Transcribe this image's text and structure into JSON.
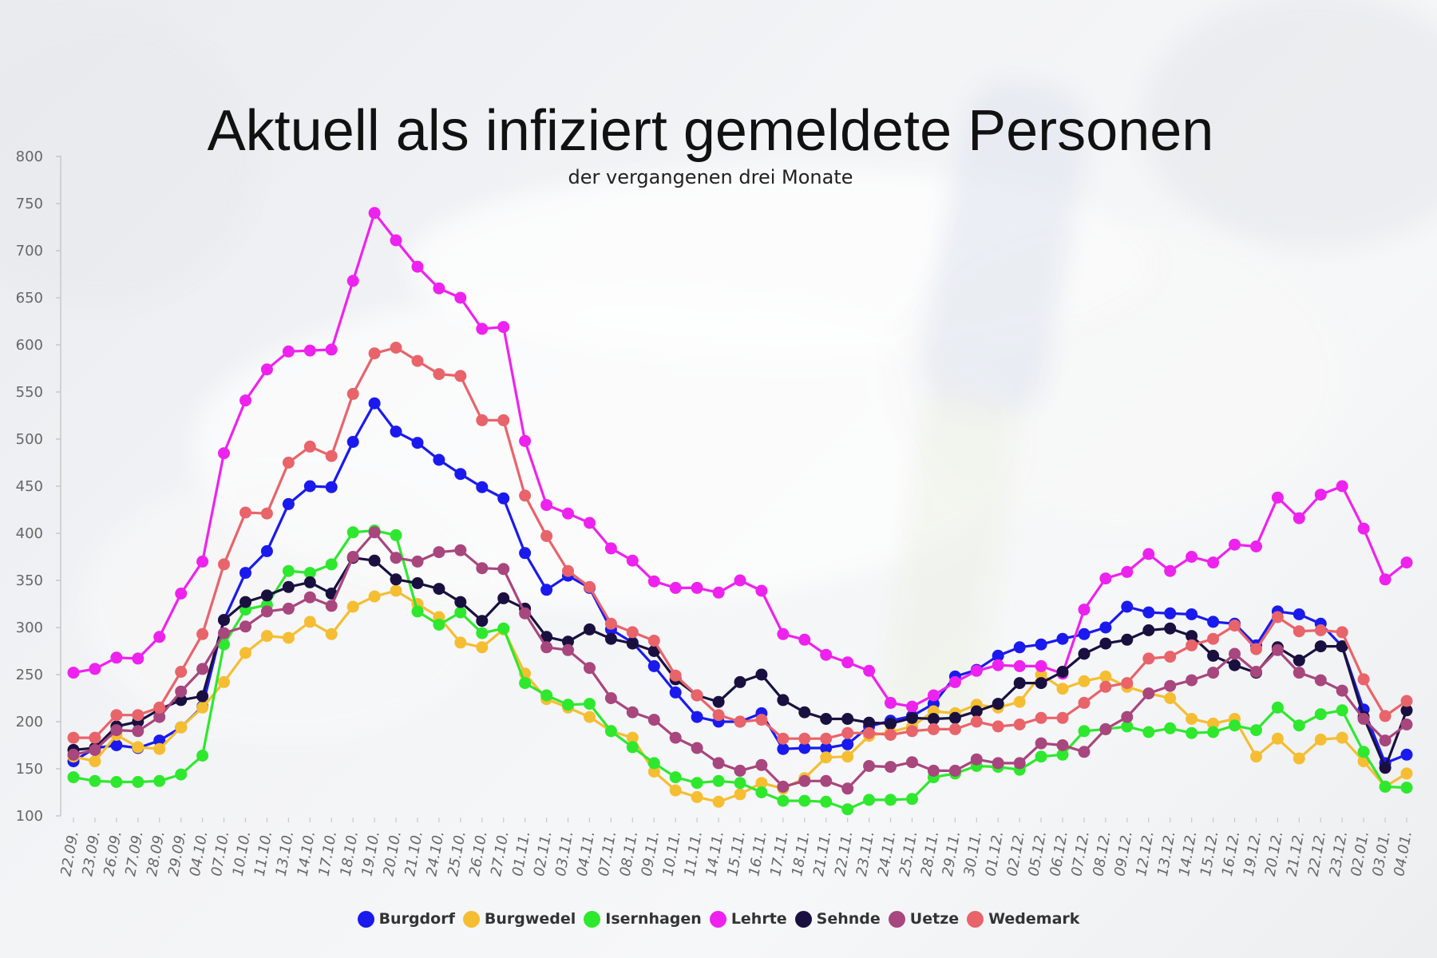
{
  "chart_data": {
    "type": "line",
    "title": "Aktuell als infiziert gemeldete Personen",
    "subtitle": "der vergangenen drei Monate",
    "xlabel": "",
    "ylabel": "",
    "ylim": [
      100,
      800
    ],
    "yticks": [
      "800",
      "750",
      "700",
      "650",
      "600",
      "550",
      "500",
      "450",
      "400",
      "350",
      "300",
      "250",
      "200",
      "150",
      "100"
    ],
    "grid": false,
    "legend_position": "bottom",
    "x": [
      "22.09.",
      "23.09.",
      "26.09.",
      "27.09.",
      "28.09.",
      "29.09.",
      "04.10.",
      "07.10.",
      "10.10.",
      "11.10.",
      "13.10.",
      "14.10.",
      "17.10.",
      "18.10.",
      "19.10.",
      "20.10.",
      "21.10.",
      "24.10.",
      "25.10.",
      "26.10.",
      "27.10.",
      "01.11.",
      "02.11.",
      "03.11.",
      "04.11.",
      "07.11.",
      "08.11.",
      "09.11.",
      "10.11.",
      "11.11.",
      "14.11.",
      "15.11.",
      "16.11.",
      "17.11.",
      "18.11.",
      "21.11.",
      "22.11.",
      "23.11.",
      "24.11.",
      "25.11.",
      "28.11.",
      "29.11.",
      "30.11.",
      "01.12.",
      "02.12.",
      "05.12.",
      "06.12.",
      "07.12.",
      "08.12.",
      "09.12.",
      "12.12.",
      "13.12.",
      "14.12.",
      "15.12.",
      "16.12.",
      "19.12.",
      "20.12.",
      "21.12.",
      "22.12.",
      "23.12.",
      "02.01.",
      "03.01.",
      "04.01."
    ],
    "series": [
      {
        "name": "Burgdorf",
        "color": "#1a1aee",
        "values": [
          158,
          172,
          175,
          172,
          180,
          194,
          216,
          308,
          358,
          381,
          431,
          450,
          449,
          497,
          538,
          508,
          496,
          478,
          463,
          449,
          437,
          379,
          340,
          355,
          342,
          298,
          284,
          259,
          231,
          205,
          200,
          200,
          209,
          171,
          172,
          172,
          176,
          195,
          201,
          206,
          219,
          248,
          255,
          270,
          279,
          282,
          288,
          293,
          300,
          322,
          316,
          315,
          314,
          306,
          304,
          281,
          317,
          314,
          304,
          280,
          213,
          156,
          165
        ]
      },
      {
        "name": "Burgwedel",
        "color": "#f5be32",
        "values": [
          163,
          158,
          186,
          173,
          171,
          194,
          215,
          242,
          273,
          291,
          289,
          306,
          293,
          322,
          333,
          339,
          325,
          311,
          284,
          279,
          298,
          251,
          224,
          215,
          205,
          190,
          183,
          147,
          127,
          120,
          115,
          123,
          135,
          129,
          140,
          162,
          163,
          185,
          189,
          195,
          211,
          209,
          218,
          215,
          221,
          250,
          235,
          243,
          248,
          237,
          230,
          225,
          203,
          198,
          203,
          163,
          182,
          161,
          181,
          183,
          158,
          131,
          145
        ]
      },
      {
        "name": "Isernhagen",
        "color": "#2ee82e",
        "values": [
          141,
          137,
          136,
          136,
          137,
          144,
          164,
          282,
          319,
          324,
          360,
          358,
          367,
          401,
          403,
          398,
          317,
          303,
          316,
          294,
          299,
          241,
          228,
          218,
          219,
          190,
          173,
          156,
          141,
          135,
          137,
          135,
          125,
          116,
          116,
          115,
          107,
          117,
          117,
          118,
          141,
          145,
          153,
          152,
          149,
          163,
          165,
          190,
          192,
          195,
          189,
          193,
          188,
          189,
          196,
          191,
          215,
          196,
          208,
          212,
          168,
          131,
          130
        ]
      },
      {
        "name": "Lehrte",
        "color": "#ee22ee",
        "values": [
          252,
          256,
          268,
          267,
          290,
          336,
          370,
          485,
          541,
          574,
          593,
          594,
          595,
          668,
          740,
          711,
          683,
          660,
          650,
          617,
          619,
          498,
          430,
          421,
          411,
          384,
          371,
          349,
          342,
          342,
          337,
          350,
          339,
          293,
          287,
          271,
          263,
          254,
          220,
          216,
          228,
          242,
          254,
          260,
          259,
          259,
          251,
          319,
          352,
          359,
          378,
          360,
          375,
          369,
          388,
          386,
          438,
          416,
          441,
          450,
          405,
          351,
          369
        ]
      },
      {
        "name": "Sehnde",
        "color": "#1a1040",
        "values": [
          170,
          172,
          195,
          200,
          213,
          223,
          227,
          308,
          327,
          334,
          343,
          348,
          336,
          374,
          371,
          351,
          347,
          341,
          327,
          307,
          331,
          320,
          290,
          285,
          298,
          288,
          283,
          275,
          245,
          228,
          221,
          242,
          250,
          223,
          210,
          203,
          203,
          199,
          198,
          204,
          203,
          204,
          211,
          219,
          241,
          241,
          253,
          272,
          283,
          287,
          297,
          299,
          291,
          270,
          260,
          252,
          279,
          265,
          280,
          280,
          205,
          151,
          212
        ]
      },
      {
        "name": "Uetze",
        "color": "#a8467e",
        "values": [
          165,
          170,
          191,
          190,
          205,
          232,
          256,
          294,
          301,
          317,
          320,
          332,
          323,
          375,
          401,
          374,
          370,
          380,
          382,
          363,
          362,
          315,
          279,
          276,
          257,
          225,
          210,
          202,
          183,
          172,
          156,
          148,
          154,
          131,
          137,
          137,
          129,
          153,
          152,
          157,
          148,
          148,
          160,
          156,
          156,
          177,
          175,
          168,
          192,
          205,
          230,
          238,
          244,
          252,
          272,
          253,
          276,
          252,
          244,
          233,
          203,
          180,
          197
        ]
      },
      {
        "name": "Wedemark",
        "color": "#e8646a",
        "values": [
          183,
          183,
          207,
          207,
          215,
          253,
          293,
          367,
          422,
          421,
          475,
          492,
          482,
          548,
          591,
          597,
          583,
          569,
          567,
          520,
          520,
          440,
          397,
          360,
          343,
          304,
          295,
          286,
          249,
          228,
          207,
          200,
          202,
          182,
          182,
          182,
          188,
          188,
          186,
          190,
          192,
          192,
          200,
          195,
          197,
          204,
          204,
          220,
          237,
          241,
          267,
          269,
          281,
          288,
          302,
          277,
          311,
          296,
          297,
          295,
          245,
          206,
          222
        ]
      }
    ]
  }
}
